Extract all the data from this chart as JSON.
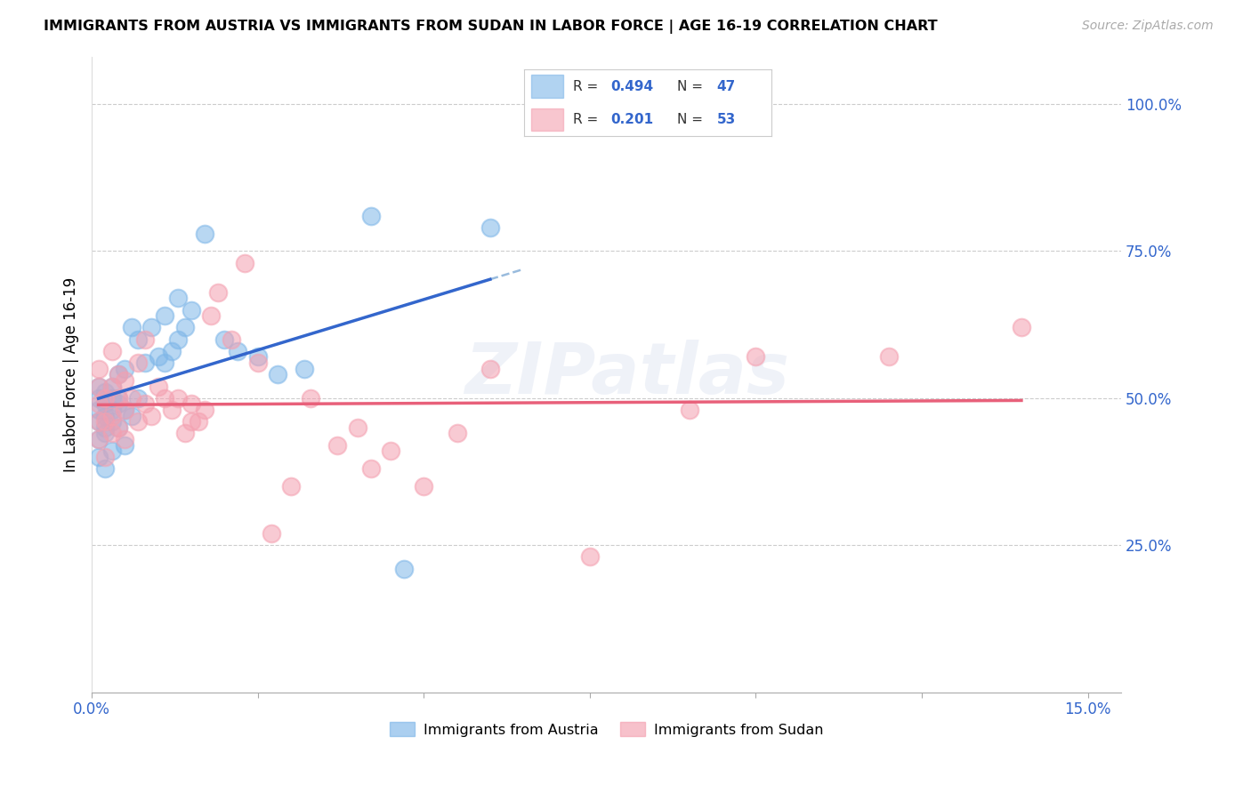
{
  "title": "IMMIGRANTS FROM AUSTRIA VS IMMIGRANTS FROM SUDAN IN LABOR FORCE | AGE 16-19 CORRELATION CHART",
  "source": "Source: ZipAtlas.com",
  "ylabel_left": "In Labor Force | Age 16-19",
  "xmin": 0.0,
  "xmax": 0.155,
  "ymin": 0.0,
  "ymax": 1.08,
  "right_yticks": [
    0.25,
    0.5,
    0.75,
    1.0
  ],
  "right_ylabels": [
    "25.0%",
    "50.0%",
    "75.0%",
    "100.0%"
  ],
  "xtick_positions": [
    0.0,
    0.025,
    0.05,
    0.075,
    0.1,
    0.125,
    0.15
  ],
  "xtick_labels": [
    "0.0%",
    "",
    "",
    "",
    "",
    "",
    "15.0%"
  ],
  "color_austria": "#7EB6E8",
  "color_sudan": "#F4A0B0",
  "color_blue_line": "#3366CC",
  "color_pink_line": "#E8607A",
  "color_dashed": "#99BBDD",
  "color_axis_labels": "#3366CC",
  "watermark_text": "ZIPatlas",
  "watermark_color": "#AABBDD",
  "legend_r_austria": "0.494",
  "legend_n_austria": "47",
  "legend_r_sudan": "0.201",
  "legend_n_sudan": "53",
  "austria_x": [
    0.001,
    0.001,
    0.001,
    0.001,
    0.001,
    0.001,
    0.002,
    0.002,
    0.002,
    0.002,
    0.002,
    0.002,
    0.003,
    0.003,
    0.003,
    0.003,
    0.003,
    0.004,
    0.004,
    0.004,
    0.004,
    0.005,
    0.005,
    0.005,
    0.006,
    0.006,
    0.007,
    0.007,
    0.008,
    0.009,
    0.01,
    0.011,
    0.011,
    0.012,
    0.013,
    0.013,
    0.014,
    0.015,
    0.017,
    0.02,
    0.022,
    0.025,
    0.028,
    0.032,
    0.042,
    0.047,
    0.06
  ],
  "austria_y": [
    0.43,
    0.46,
    0.48,
    0.5,
    0.52,
    0.4,
    0.38,
    0.44,
    0.47,
    0.49,
    0.51,
    0.45,
    0.41,
    0.46,
    0.48,
    0.52,
    0.5,
    0.45,
    0.49,
    0.54,
    0.5,
    0.42,
    0.48,
    0.55,
    0.47,
    0.62,
    0.5,
    0.6,
    0.56,
    0.62,
    0.57,
    0.56,
    0.64,
    0.58,
    0.6,
    0.67,
    0.62,
    0.65,
    0.78,
    0.6,
    0.58,
    0.57,
    0.54,
    0.55,
    0.81,
    0.21,
    0.79
  ],
  "sudan_x": [
    0.001,
    0.001,
    0.001,
    0.001,
    0.001,
    0.002,
    0.002,
    0.002,
    0.003,
    0.003,
    0.003,
    0.003,
    0.004,
    0.004,
    0.004,
    0.005,
    0.005,
    0.005,
    0.006,
    0.007,
    0.007,
    0.008,
    0.008,
    0.009,
    0.01,
    0.011,
    0.012,
    0.013,
    0.014,
    0.015,
    0.015,
    0.016,
    0.017,
    0.018,
    0.019,
    0.021,
    0.023,
    0.025,
    0.03,
    0.033,
    0.04,
    0.042,
    0.045,
    0.05,
    0.06,
    0.075,
    0.09,
    0.1,
    0.12,
    0.14,
    0.027,
    0.037,
    0.055
  ],
  "sudan_y": [
    0.43,
    0.46,
    0.49,
    0.52,
    0.55,
    0.4,
    0.46,
    0.5,
    0.44,
    0.47,
    0.52,
    0.58,
    0.45,
    0.5,
    0.54,
    0.43,
    0.48,
    0.53,
    0.5,
    0.46,
    0.56,
    0.49,
    0.6,
    0.47,
    0.52,
    0.5,
    0.48,
    0.5,
    0.44,
    0.46,
    0.49,
    0.46,
    0.48,
    0.64,
    0.68,
    0.6,
    0.73,
    0.56,
    0.35,
    0.5,
    0.45,
    0.38,
    0.41,
    0.35,
    0.55,
    0.23,
    0.48,
    0.57,
    0.57,
    0.62,
    0.27,
    0.42,
    0.44
  ]
}
